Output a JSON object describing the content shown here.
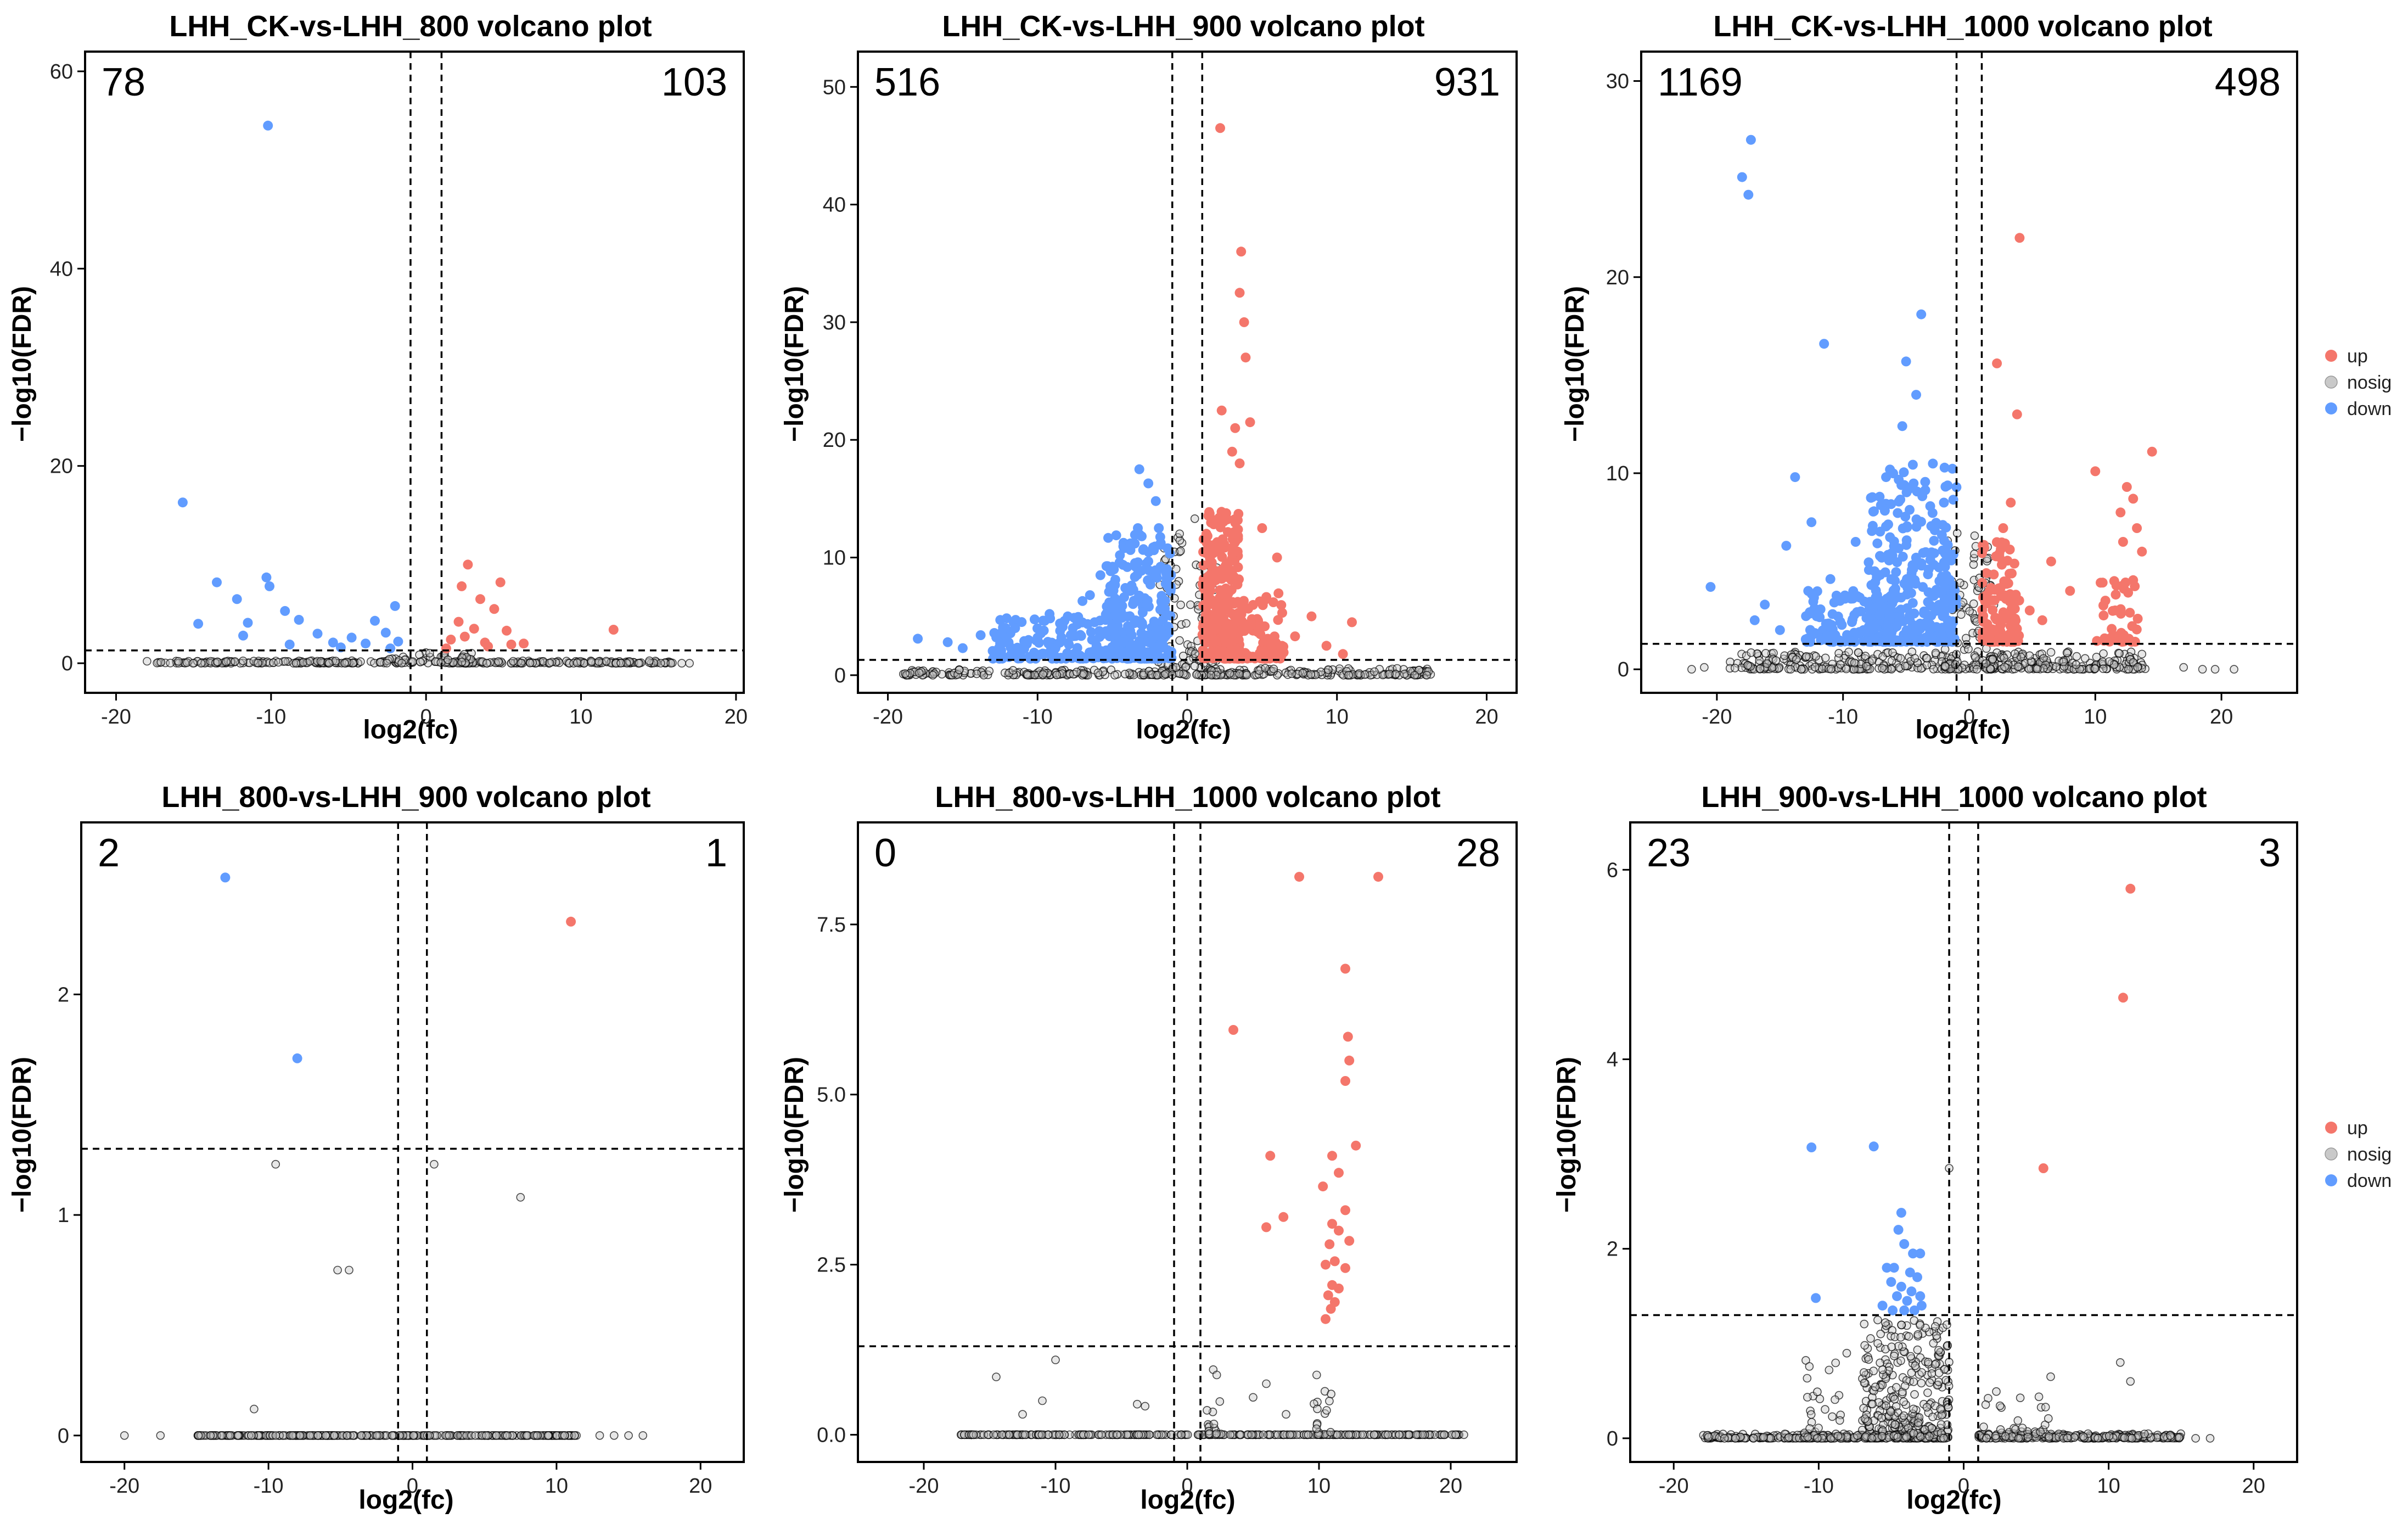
{
  "chart_data": [
    {
      "type": "scatter",
      "title": "LHH_CK-vs-LHH_800 volcano plot",
      "xlabel": "log2(fc)",
      "ylabel": "−log10(FDR)",
      "xlim": [
        -22,
        20.5
      ],
      "ylim": [
        -3,
        62
      ],
      "xticks": [
        -20,
        -10,
        0,
        10,
        20
      ],
      "yticks": [
        0,
        20,
        40,
        60
      ],
      "ytick_labels": [
        "0",
        "20",
        "40",
        "60"
      ],
      "fc_threshold": 1,
      "fdr_threshold": 1.3,
      "down_count": "78",
      "up_count": "103",
      "down_points": [
        [
          -10.2,
          54.5
        ],
        [
          -15.7,
          16.3
        ],
        [
          -10.3,
          8.7
        ],
        [
          -10.1,
          7.8
        ],
        [
          -13.5,
          8.2
        ],
        [
          -12.2,
          6.5
        ],
        [
          -11.5,
          4.1
        ],
        [
          -9.1,
          5.3
        ],
        [
          -8.2,
          4.4
        ],
        [
          -7.0,
          3.0
        ],
        [
          -6.0,
          2.1
        ],
        [
          -4.8,
          2.6
        ],
        [
          -3.3,
          4.3
        ],
        [
          -2.0,
          5.8
        ],
        [
          -2.6,
          3.1
        ],
        [
          -1.8,
          2.2
        ],
        [
          -14.7,
          4.0
        ],
        [
          -11.8,
          2.8
        ],
        [
          -3.9,
          2.0
        ],
        [
          -5.5,
          1.6
        ],
        [
          -8.8,
          1.9
        ],
        [
          -2.3,
          1.5
        ]
      ],
      "up_points": [
        [
          2.3,
          7.8
        ],
        [
          2.7,
          10.0
        ],
        [
          4.8,
          8.2
        ],
        [
          3.5,
          6.5
        ],
        [
          4.4,
          5.5
        ],
        [
          2.1,
          4.2
        ],
        [
          3.1,
          3.5
        ],
        [
          5.2,
          3.3
        ],
        [
          12.1,
          3.4
        ],
        [
          1.6,
          2.4
        ],
        [
          2.5,
          2.7
        ],
        [
          3.8,
          2.1
        ],
        [
          4.0,
          1.7
        ],
        [
          5.5,
          1.9
        ],
        [
          1.3,
          1.5
        ],
        [
          6.3,
          2.0
        ]
      ],
      "nosig_clusters": [
        [
          -17.5,
          -1.5,
          0.0,
          0.25,
          140
        ],
        [
          1.5,
          16.0,
          0.0,
          0.25,
          140
        ],
        [
          -3.0,
          3.0,
          0.0,
          1.1,
          60
        ]
      ],
      "nosig_points": [
        [
          -18.0,
          0.2
        ],
        [
          17.0,
          0.0
        ],
        [
          16.5,
          0.0
        ],
        [
          15.8,
          0.0
        ]
      ]
    },
    {
      "type": "scatter",
      "title": "LHH_CK-vs-LHH_900 volcano plot",
      "xlabel": "log2(fc)",
      "ylabel": "−log10(FDR)",
      "xlim": [
        -22,
        22
      ],
      "ylim": [
        -1.5,
        53
      ],
      "xticks": [
        -20,
        -10,
        0,
        10,
        20
      ],
      "yticks": [
        0,
        10,
        20,
        30,
        40,
        50
      ],
      "ytick_labels": [
        "0",
        "10",
        "20",
        "30",
        "40",
        "50"
      ],
      "fc_threshold": 1,
      "fdr_threshold": 1.3,
      "down_count": "516",
      "up_count": "931",
      "down_points": [
        [
          -3.2,
          17.5
        ],
        [
          -2.6,
          16.3
        ],
        [
          -2.1,
          14.8
        ],
        [
          -3.3,
          12.5
        ],
        [
          -4.5,
          10.2
        ],
        [
          -5.8,
          8.5
        ],
        [
          -7.0,
          6.3
        ],
        [
          -9.2,
          5.2
        ],
        [
          -11.5,
          4.0
        ],
        [
          -13.8,
          3.4
        ],
        [
          -16.0,
          2.8
        ],
        [
          -18.0,
          3.1
        ],
        [
          -15.0,
          2.3
        ],
        [
          -12.5,
          2.7
        ],
        [
          -10.0,
          3.2
        ],
        [
          -8.5,
          4.4
        ],
        [
          -6.5,
          6.8
        ],
        [
          -5.1,
          9.0
        ],
        [
          -3.8,
          11.2
        ],
        [
          -1.9,
          12.5
        ]
      ],
      "down_clusters": [
        [
          -5.5,
          -1.0,
          1.4,
          12.0,
          260
        ],
        [
          -13.0,
          -5.5,
          1.4,
          5.0,
          120
        ]
      ],
      "up_points": [
        [
          2.2,
          46.5
        ],
        [
          3.6,
          36.0
        ],
        [
          3.5,
          32.5
        ],
        [
          3.8,
          30.0
        ],
        [
          3.9,
          27.0
        ],
        [
          2.3,
          22.5
        ],
        [
          4.2,
          21.5
        ],
        [
          3.2,
          21.0
        ],
        [
          3.0,
          19.0
        ],
        [
          3.5,
          18.0
        ],
        [
          5.0,
          12.5
        ],
        [
          6.0,
          10.0
        ],
        [
          8.3,
          5.0
        ],
        [
          11.0,
          4.5
        ],
        [
          7.2,
          3.3
        ],
        [
          9.3,
          2.5
        ],
        [
          10.4,
          1.8
        ]
      ],
      "up_clusters": [
        [
          1.0,
          3.5,
          1.4,
          14.0,
          300
        ],
        [
          3.5,
          6.5,
          1.4,
          7.0,
          80
        ]
      ],
      "nosig_clusters": [
        [
          -19.0,
          -1.0,
          0.0,
          0.5,
          160
        ],
        [
          1.0,
          16.5,
          0.0,
          0.6,
          160
        ],
        [
          -2.0,
          2.0,
          0.0,
          14.5,
          120
        ]
      ],
      "nosig_points": [
        [
          12.5,
          0.3
        ],
        [
          13.5,
          0.1
        ],
        [
          14.5,
          0.1
        ],
        [
          15.2,
          0.0
        ],
        [
          16.0,
          0.0
        ]
      ]
    },
    {
      "type": "scatter",
      "title": "LHH_CK-vs-LHH_1000 volcano plot",
      "xlabel": "log2(fc)",
      "ylabel": "−log10(FDR)",
      "xlim": [
        -26,
        26
      ],
      "ylim": [
        -1.2,
        31.5
      ],
      "xticks": [
        -20,
        -10,
        0,
        10,
        20
      ],
      "yticks": [
        0,
        10,
        20,
        30
      ],
      "ytick_labels": [
        "0",
        "10",
        "20",
        "30"
      ],
      "fc_threshold": 1,
      "fdr_threshold": 1.3,
      "down_count": "1169",
      "up_count": "498",
      "down_points": [
        [
          -17.3,
          27.0
        ],
        [
          -18.0,
          25.1
        ],
        [
          -17.5,
          24.2
        ],
        [
          -3.8,
          18.1
        ],
        [
          -11.5,
          16.6
        ],
        [
          -5.0,
          15.7
        ],
        [
          -4.2,
          14.0
        ],
        [
          -5.3,
          12.4
        ],
        [
          -13.8,
          9.8
        ],
        [
          -12.5,
          7.5
        ],
        [
          -14.5,
          6.3
        ],
        [
          -9.0,
          6.5
        ],
        [
          -7.5,
          5.0
        ],
        [
          -20.5,
          4.2
        ],
        [
          -16.2,
          3.3
        ],
        [
          -11.0,
          4.6
        ],
        [
          -17.0,
          2.5
        ],
        [
          -15.0,
          2.0
        ],
        [
          -12.0,
          1.8
        ],
        [
          -2.0,
          8.5
        ]
      ],
      "down_clusters": [
        [
          -8.0,
          -1.0,
          1.4,
          10.5,
          320
        ],
        [
          -13.0,
          -6.0,
          1.4,
          4.0,
          110
        ]
      ],
      "up_points": [
        [
          4.0,
          22.0
        ],
        [
          2.2,
          15.6
        ],
        [
          3.8,
          13.0
        ],
        [
          14.5,
          11.1
        ],
        [
          10.0,
          10.1
        ],
        [
          12.5,
          9.3
        ],
        [
          13.0,
          8.7
        ],
        [
          12.0,
          8.0
        ],
        [
          13.3,
          7.2
        ],
        [
          12.2,
          6.5
        ],
        [
          13.7,
          6.0
        ],
        [
          3.3,
          8.5
        ],
        [
          2.7,
          7.2
        ],
        [
          6.5,
          5.5
        ],
        [
          8.0,
          4.0
        ],
        [
          11.5,
          4.5
        ],
        [
          10.8,
          3.5
        ],
        [
          4.8,
          3.0
        ],
        [
          5.8,
          2.5
        ]
      ],
      "up_clusters": [
        [
          1.0,
          4.0,
          1.4,
          6.5,
          120
        ],
        [
          10.0,
          13.5,
          1.4,
          5.0,
          40
        ]
      ],
      "nosig_clusters": [
        [
          -19.0,
          -1.0,
          0.0,
          0.9,
          200
        ],
        [
          1.0,
          14.0,
          0.0,
          0.9,
          180
        ],
        [
          -2.0,
          2.0,
          0.0,
          7.0,
          120
        ]
      ],
      "nosig_points": [
        [
          -21.0,
          0.1
        ],
        [
          -22.0,
          0.0
        ],
        [
          17.0,
          0.1
        ],
        [
          18.5,
          0.0
        ],
        [
          19.5,
          0.0
        ],
        [
          21.0,
          0.0
        ]
      ]
    },
    {
      "type": "scatter",
      "title": "LHH_800-vs-LHH_900 volcano plot",
      "xlabel": "log2(fc)",
      "ylabel": "−log10(FDR)",
      "xlim": [
        -23,
        23
      ],
      "ylim": [
        -0.12,
        2.78
      ],
      "xticks": [
        -20,
        -10,
        0,
        10,
        20
      ],
      "yticks": [
        0,
        1,
        2
      ],
      "ytick_labels": [
        "0",
        "1",
        "2"
      ],
      "fc_threshold": 1,
      "fdr_threshold": 1.3,
      "down_count": "2",
      "up_count": "1",
      "down_points": [
        [
          -13.0,
          2.53
        ],
        [
          -8.0,
          1.71
        ]
      ],
      "up_points": [
        [
          11.0,
          2.33
        ]
      ],
      "nosig_clusters": [
        [
          -15.0,
          11.5,
          0.0,
          0.0,
          320
        ]
      ],
      "nosig_points": [
        [
          -9.5,
          1.23
        ],
        [
          1.5,
          1.23
        ],
        [
          7.5,
          1.08
        ],
        [
          -5.2,
          0.75
        ],
        [
          -4.4,
          0.75
        ],
        [
          -11.0,
          0.12
        ],
        [
          -20.0,
          0.0
        ],
        [
          -17.5,
          0.0
        ],
        [
          13.0,
          0.0
        ],
        [
          14.0,
          0.0
        ],
        [
          15.0,
          0.0
        ],
        [
          16.0,
          0.0
        ]
      ]
    },
    {
      "type": "scatter",
      "title": "LHH_800-vs-LHH_1000 volcano plot",
      "xlabel": "log2(fc)",
      "ylabel": "−log10(FDR)",
      "xlim": [
        -25,
        25
      ],
      "ylim": [
        -0.4,
        9.0
      ],
      "xticks": [
        -20,
        -10,
        0,
        10,
        20
      ],
      "yticks": [
        0,
        2.5,
        5.0,
        7.5
      ],
      "ytick_labels": [
        "0.0",
        "2.5",
        "5.0",
        "7.5"
      ],
      "fc_threshold": 1,
      "fdr_threshold": 1.3,
      "down_count": "0",
      "up_count": "28",
      "up_points": [
        [
          8.5,
          8.2
        ],
        [
          14.5,
          8.2
        ],
        [
          12.0,
          6.85
        ],
        [
          3.5,
          5.95
        ],
        [
          12.2,
          5.85
        ],
        [
          12.3,
          5.5
        ],
        [
          12.0,
          5.2
        ],
        [
          12.8,
          4.25
        ],
        [
          6.3,
          4.1
        ],
        [
          11.0,
          4.1
        ],
        [
          11.5,
          3.85
        ],
        [
          10.3,
          3.65
        ],
        [
          12.0,
          3.3
        ],
        [
          7.3,
          3.2
        ],
        [
          6.0,
          3.05
        ],
        [
          11.0,
          3.1
        ],
        [
          11.5,
          3.0
        ],
        [
          12.3,
          2.85
        ],
        [
          10.8,
          2.8
        ],
        [
          11.2,
          2.55
        ],
        [
          10.5,
          2.5
        ],
        [
          12.0,
          2.45
        ],
        [
          11.0,
          2.2
        ],
        [
          11.5,
          2.15
        ],
        [
          10.7,
          2.05
        ],
        [
          11.2,
          1.95
        ],
        [
          10.9,
          1.85
        ],
        [
          10.5,
          1.7
        ]
      ],
      "nosig_clusters": [
        [
          -17.5,
          21.0,
          0.0,
          0.0,
          320
        ],
        [
          1.5,
          3.0,
          0.0,
          1.1,
          18
        ],
        [
          9.5,
          11.0,
          0.0,
          0.9,
          18
        ]
      ],
      "nosig_points": [
        [
          -14.5,
          0.85
        ],
        [
          -10.0,
          1.1
        ],
        [
          -11.0,
          0.5
        ],
        [
          -3.8,
          0.45
        ],
        [
          -3.2,
          0.42
        ],
        [
          6.0,
          0.75
        ],
        [
          5.0,
          0.55
        ],
        [
          7.5,
          0.3
        ],
        [
          21.0,
          0.0
        ],
        [
          19.5,
          0.0
        ],
        [
          -12.5,
          0.3
        ]
      ]
    },
    {
      "type": "scatter",
      "title": "LHH_900-vs-LHH_1000 volcano plot",
      "xlabel": "log2(fc)",
      "ylabel": "−log10(FDR)",
      "xlim": [
        -23,
        23
      ],
      "ylim": [
        -0.25,
        6.5
      ],
      "xticks": [
        -20,
        -10,
        0,
        10,
        20
      ],
      "yticks": [
        0,
        2,
        4,
        6
      ],
      "ytick_labels": [
        "0",
        "2",
        "4",
        "6"
      ],
      "fc_threshold": 1,
      "fdr_threshold": 1.3,
      "down_count": "23",
      "up_count": "3",
      "down_points": [
        [
          -10.5,
          3.07
        ],
        [
          -6.2,
          3.08
        ],
        [
          -10.2,
          1.48
        ],
        [
          -4.3,
          2.38
        ],
        [
          -4.5,
          2.2
        ],
        [
          -4.1,
          2.05
        ],
        [
          -3.5,
          1.95
        ],
        [
          -3.0,
          1.95
        ],
        [
          -5.3,
          1.8
        ],
        [
          -4.8,
          1.8
        ],
        [
          -3.7,
          1.75
        ],
        [
          -5.0,
          1.65
        ],
        [
          -4.3,
          1.6
        ],
        [
          -3.2,
          1.7
        ],
        [
          -4.6,
          1.5
        ],
        [
          -3.9,
          1.45
        ],
        [
          -5.6,
          1.4
        ],
        [
          -4.1,
          1.35
        ],
        [
          -3.4,
          1.35
        ],
        [
          -3.0,
          1.5
        ],
        [
          -4.9,
          1.35
        ],
        [
          -3.6,
          1.55
        ],
        [
          -2.9,
          1.4
        ]
      ],
      "up_points": [
        [
          11.5,
          5.8
        ],
        [
          11.0,
          4.65
        ],
        [
          5.5,
          2.85
        ]
      ],
      "nosig_clusters": [
        [
          -18.0,
          -1.0,
          0.0,
          0.05,
          260
        ],
        [
          1.0,
          15.0,
          0.0,
          0.05,
          240
        ],
        [
          -7.0,
          -1.0,
          0.0,
          1.25,
          320
        ],
        [
          -11.0,
          -8.0,
          0.0,
          0.9,
          40
        ],
        [
          1.0,
          6.0,
          0.0,
          0.5,
          40
        ]
      ],
      "nosig_points": [
        [
          -1.0,
          2.85
        ],
        [
          10.8,
          0.8
        ],
        [
          11.5,
          0.6
        ],
        [
          6.0,
          0.65
        ],
        [
          -16.5,
          0.0
        ],
        [
          17.0,
          0.0
        ],
        [
          16.0,
          0.0
        ]
      ]
    }
  ],
  "legend": {
    "items": [
      {
        "label": "up",
        "color": "#f4766b"
      },
      {
        "label": "nosig",
        "color": "#c9c9c9"
      },
      {
        "label": "down",
        "color": "#619cff"
      }
    ]
  }
}
